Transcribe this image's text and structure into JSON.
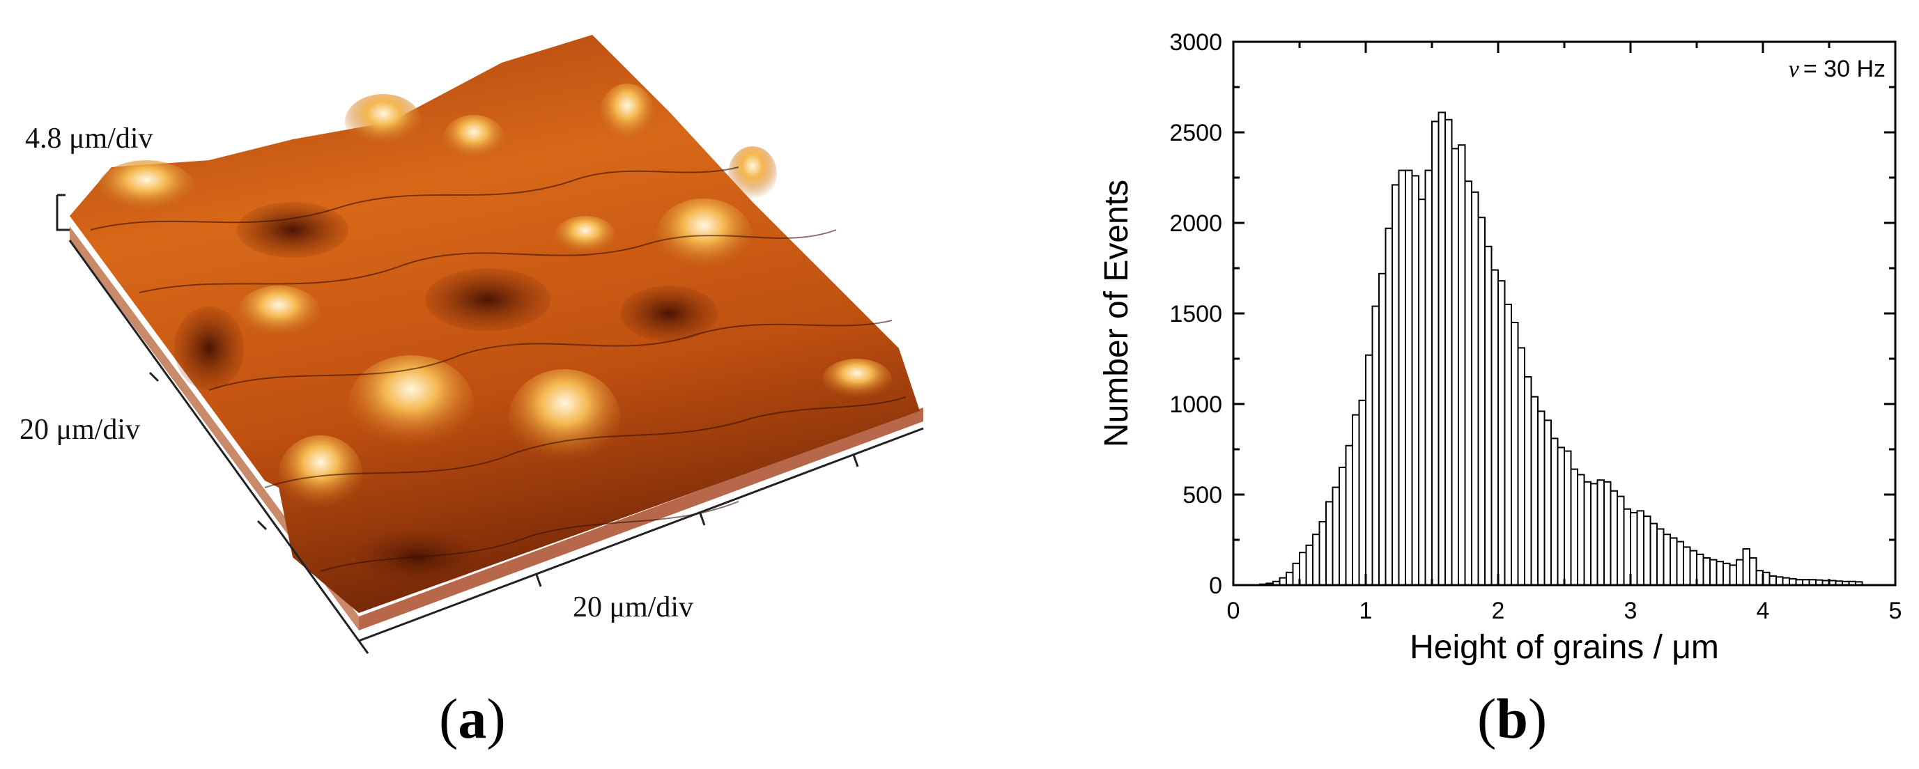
{
  "panel_a": {
    "label_open": "(",
    "label_letter": "a",
    "label_close": ")",
    "z_scale_label": "4.8 μm/div",
    "y_scale_label": "20 μm/div",
    "x_scale_label": "20 μm/div",
    "colors": {
      "dark": "#5a1a05",
      "mid": "#c8500f",
      "bright": "#f0a030",
      "peak": "#ffe6b0",
      "base_side": "#b8684a"
    }
  },
  "panel_b": {
    "label_open": "(",
    "label_letter": "b",
    "label_close": ")"
  },
  "chart_data": {
    "type": "bar",
    "title": "",
    "annotation_symbol": "ν",
    "annotation_value": "= 30 Hz",
    "xlabel": "Height of grains / μm",
    "ylabel": "Number of Events",
    "xlim": [
      0,
      5
    ],
    "ylim": [
      0,
      3000
    ],
    "xticks": [
      "0",
      "1",
      "2",
      "3",
      "4",
      "5"
    ],
    "yticks": [
      "0",
      "500",
      "1000",
      "1500",
      "2000",
      "2500",
      "3000"
    ],
    "bin_width": 0.05,
    "bin_start": 0.0,
    "values": [
      0,
      0,
      0,
      0,
      5,
      10,
      20,
      40,
      70,
      120,
      180,
      220,
      280,
      350,
      460,
      540,
      650,
      770,
      940,
      1020,
      1270,
      1540,
      1720,
      1970,
      2210,
      2290,
      2290,
      2260,
      2130,
      2290,
      2560,
      2610,
      2570,
      2410,
      2430,
      2230,
      2170,
      2030,
      1870,
      1740,
      1680,
      1550,
      1450,
      1310,
      1150,
      1040,
      960,
      910,
      810,
      760,
      740,
      640,
      610,
      570,
      560,
      580,
      570,
      520,
      490,
      420,
      400,
      410,
      380,
      340,
      310,
      280,
      260,
      240,
      210,
      190,
      170,
      150,
      140,
      130,
      120,
      110,
      140,
      200,
      150,
      80,
      70,
      50,
      45,
      40,
      35,
      30,
      30,
      30,
      28,
      25,
      25,
      22,
      20,
      20,
      18
    ]
  }
}
